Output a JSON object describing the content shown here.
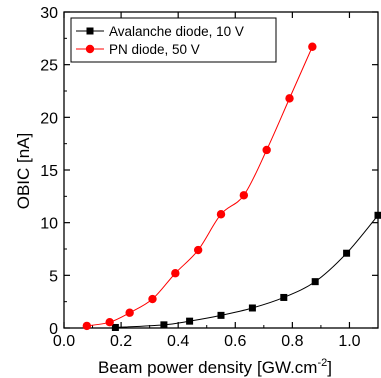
{
  "chart_data": {
    "type": "line",
    "title": "",
    "xlabel": "Beam power density",
    "xlabel_unit": "[GW.cm",
    "xlabel_unit_sup": "-2",
    "xlabel_unit_close": "]",
    "ylabel": "OBIC [nA]",
    "xlim": [
      0.0,
      1.1
    ],
    "ylim": [
      0,
      30
    ],
    "x_ticks": [
      "0.0",
      "0.2",
      "0.4",
      "0.6",
      "0.8",
      "1.0"
    ],
    "x_tick_values": [
      0.0,
      0.2,
      0.4,
      0.6,
      0.8,
      1.0
    ],
    "y_ticks": [
      "0",
      "5",
      "10",
      "15",
      "20",
      "25",
      "30"
    ],
    "y_tick_values": [
      0,
      5,
      10,
      15,
      20,
      25,
      30
    ],
    "grid": false,
    "legend_position": "top-left",
    "series": [
      {
        "name": "Avalanche diode, 10 V",
        "color": "#000000",
        "marker": "square",
        "x": [
          0.18,
          0.35,
          0.44,
          0.55,
          0.66,
          0.77,
          0.88,
          0.99,
          1.1
        ],
        "y": [
          0.05,
          0.3,
          0.65,
          1.2,
          1.9,
          2.9,
          4.4,
          7.1,
          10.7
        ]
      },
      {
        "name": "PN diode, 50 V",
        "color": "#ff0000",
        "marker": "circle",
        "x": [
          0.08,
          0.16,
          0.23,
          0.31,
          0.39,
          0.47,
          0.55,
          0.63,
          0.71,
          0.79,
          0.87
        ],
        "y": [
          0.2,
          0.55,
          1.45,
          2.75,
          5.2,
          7.4,
          10.8,
          12.6,
          16.9,
          21.8,
          26.7
        ]
      }
    ]
  }
}
